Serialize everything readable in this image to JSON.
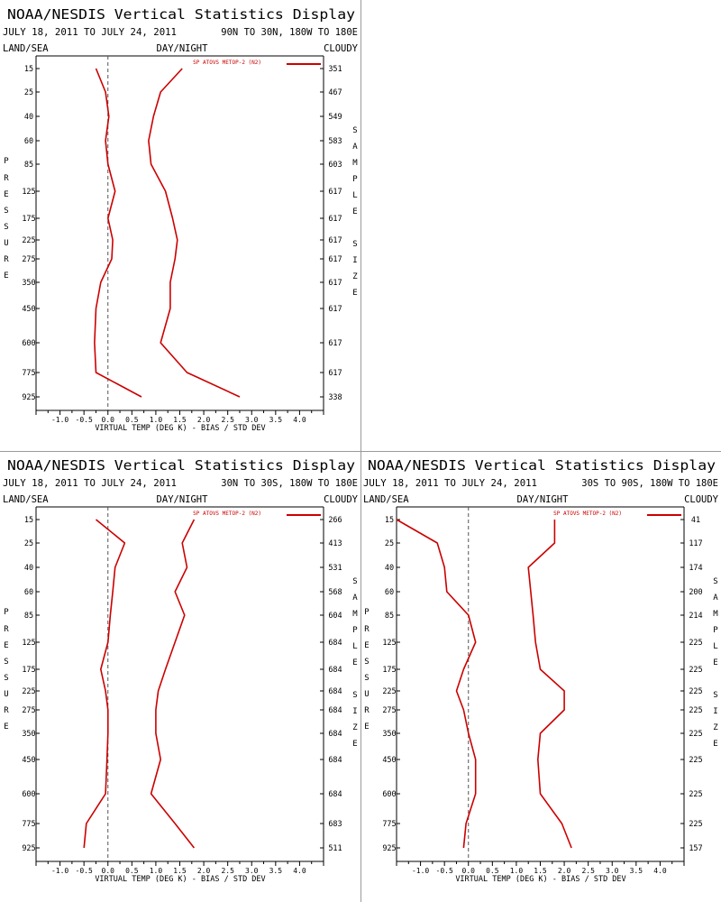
{
  "chart_data": [
    {
      "type": "line",
      "title": "NOAA/NESDIS Vertical Statistics Display",
      "date_range": "JULY 18, 2011 TO JULY 24, 2011",
      "region": "90N TO 30N, 180W TO 180E",
      "label_land_sea": "LAND/SEA",
      "label_day_night": "DAY/NIGHT",
      "label_cloudy": "CLOUDY",
      "ylabel": "PRESSURE",
      "y2label": "SAMPLE SIZE",
      "xlabel": "VIRTUAL TEMP (DEG K) - BIAS / STD DEV",
      "xlim": [
        -1.5,
        4.5
      ],
      "xticks": [
        "-1.0",
        "-0.5",
        "0.0",
        "0.5",
        "1.0",
        "1.5",
        "2.0",
        "2.5",
        "3.0",
        "3.5",
        "4.0"
      ],
      "legend": "SP ATOVS METOP-2 (N2)",
      "pressure_levels": [
        "15",
        "25",
        "40",
        "60",
        "85",
        "125",
        "175",
        "225",
        "275",
        "350",
        "450",
        "600",
        "775",
        "925"
      ],
      "sample_size": [
        "351",
        "467",
        "549",
        "583",
        "603",
        "617",
        "617",
        "617",
        "617",
        "617",
        "617",
        "617",
        "617",
        "338"
      ],
      "series": [
        {
          "values": [
            -0.25,
            -0.05,
            0.02,
            -0.05,
            0.0,
            0.15,
            0.0,
            0.1,
            0.08,
            -0.15,
            -0.25,
            -0.28,
            -0.25,
            0.7
          ]
        },
        {
          "values": [
            1.55,
            1.1,
            0.95,
            0.85,
            0.9,
            1.2,
            1.35,
            1.45,
            1.4,
            1.3,
            1.3,
            1.1,
            1.65,
            2.75
          ]
        }
      ]
    },
    {
      "type": "line",
      "title": "NOAA/NESDIS Vertical Statistics Display",
      "date_range": "JULY 18, 2011 TO JULY 24, 2011",
      "region": "30N TO 30S, 180W TO 180E",
      "label_land_sea": "LAND/SEA",
      "label_day_night": "DAY/NIGHT",
      "label_cloudy": "CLOUDY",
      "ylabel": "PRESSURE",
      "y2label": "SAMPLE SIZE",
      "xlabel": "VIRTUAL TEMP (DEG K) - BIAS / STD DEV",
      "xlim": [
        -1.5,
        4.5
      ],
      "xticks": [
        "-1.0",
        "-0.5",
        "0.0",
        "0.5",
        "1.0",
        "1.5",
        "2.0",
        "2.5",
        "3.0",
        "3.5",
        "4.0"
      ],
      "legend": "SP ATOVS METOP-2 (N2)",
      "pressure_levels": [
        "15",
        "25",
        "40",
        "60",
        "85",
        "125",
        "175",
        "225",
        "275",
        "350",
        "450",
        "600",
        "775",
        "925"
      ],
      "sample_size": [
        "266",
        "413",
        "531",
        "568",
        "604",
        "684",
        "684",
        "684",
        "684",
        "684",
        "684",
        "684",
        "683",
        "511"
      ],
      "series": [
        {
          "values": [
            -0.25,
            0.35,
            0.15,
            0.1,
            0.05,
            0.0,
            -0.15,
            -0.05,
            0.0,
            0.0,
            -0.02,
            -0.05,
            -0.45,
            -0.5
          ]
        },
        {
          "values": [
            1.8,
            1.55,
            1.65,
            1.4,
            1.6,
            1.4,
            1.2,
            1.05,
            1.0,
            1.0,
            1.1,
            0.9,
            1.4,
            1.8
          ]
        }
      ]
    },
    {
      "type": "line",
      "title": "NOAA/NESDIS Vertical Statistics Display",
      "date_range": "JULY 18, 2011 TO JULY 24, 2011",
      "region": "30S TO 90S, 180W TO 180E",
      "label_land_sea": "LAND/SEA",
      "label_day_night": "DAY/NIGHT",
      "label_cloudy": "CLOUDY",
      "ylabel": "PRESSURE",
      "y2label": "SAMPLE SIZE",
      "xlabel": "VIRTUAL TEMP (DEG K) - BIAS / STD DEV",
      "xlim": [
        -1.5,
        4.5
      ],
      "xticks": [
        "-1.0",
        "-0.5",
        "0.0",
        "0.5",
        "1.0",
        "1.5",
        "2.0",
        "2.5",
        "3.0",
        "3.5",
        "4.0"
      ],
      "legend": "SP ATOVS METOP-2 (N2)",
      "pressure_levels": [
        "15",
        "25",
        "40",
        "60",
        "85",
        "125",
        "175",
        "225",
        "275",
        "350",
        "450",
        "600",
        "775",
        "925"
      ],
      "sample_size": [
        "41",
        "117",
        "174",
        "200",
        "214",
        "225",
        "225",
        "225",
        "225",
        "225",
        "225",
        "225",
        "225",
        "157"
      ],
      "series": [
        {
          "values": [
            -1.5,
            -0.65,
            -0.5,
            -0.45,
            0.0,
            0.15,
            -0.1,
            -0.25,
            -0.1,
            0.0,
            0.15,
            0.15,
            -0.05,
            -0.1
          ]
        },
        {
          "values": [
            1.8,
            1.8,
            1.25,
            1.3,
            1.35,
            1.4,
            1.5,
            2.0,
            2.0,
            1.5,
            1.45,
            1.5,
            1.95,
            2.15
          ]
        }
      ]
    }
  ],
  "colors": {
    "series": "#cc0000",
    "axis": "#000000",
    "zero_line": "#555555",
    "divider": "#9a9a9a"
  }
}
